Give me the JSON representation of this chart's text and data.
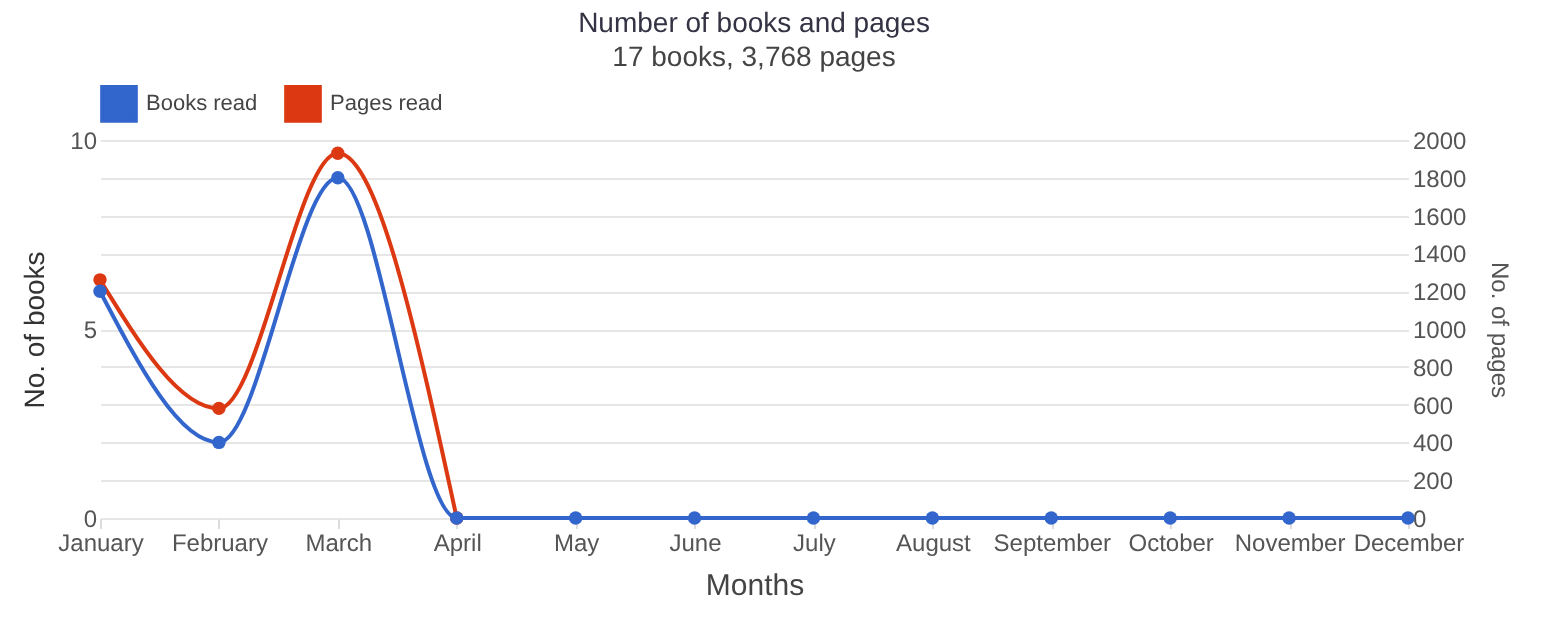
{
  "chart_data": {
    "type": "line",
    "title": "Number of books and pages",
    "subtitle": "17 books, 3,768 pages",
    "xlabel": "Months",
    "ylabel": "No. of books",
    "y2label": "No. of pages",
    "categories": [
      "January",
      "February",
      "March",
      "April",
      "May",
      "June",
      "July",
      "August",
      "September",
      "October",
      "November",
      "December"
    ],
    "series": [
      {
        "name": "Books read",
        "color": "#3366cc",
        "values": [
          6,
          2,
          9,
          0,
          0,
          0,
          0,
          0,
          0,
          0,
          0,
          0
        ]
      },
      {
        "name": "Pages read",
        "color": "#dc3912",
        "axis": "y2",
        "values": [
          1260,
          580,
          1930,
          0,
          null,
          null,
          null,
          null,
          null,
          null,
          null,
          null
        ]
      }
    ],
    "ylim": [
      0,
      10
    ],
    "yticks": [
      0,
      5,
      10
    ],
    "y2lim": [
      0,
      2000
    ],
    "y2ticks": [
      0,
      200,
      400,
      600,
      800,
      1000,
      1200,
      1400,
      1600,
      1800,
      2000
    ],
    "grid": "y",
    "legend": "top",
    "marker": "circle",
    "line_style": "solid"
  }
}
